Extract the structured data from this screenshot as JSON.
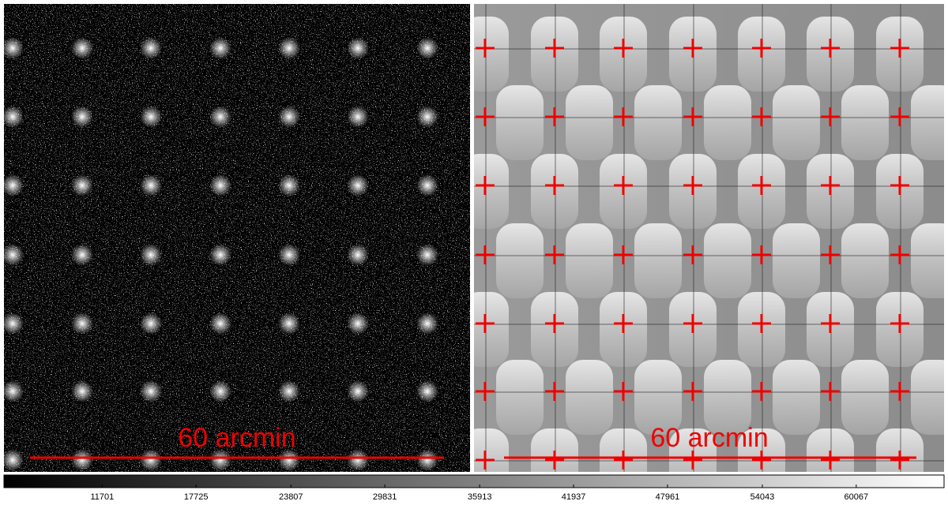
{
  "panels": [
    {
      "scale_label": "60 arcmin"
    },
    {
      "scale_label": "60 arcmin"
    }
  ],
  "colorbar": {
    "range": [
      5400,
      65700
    ],
    "ticks": [
      11701,
      17725,
      23807,
      29831,
      35913,
      41937,
      47961,
      54043,
      60067
    ]
  }
}
